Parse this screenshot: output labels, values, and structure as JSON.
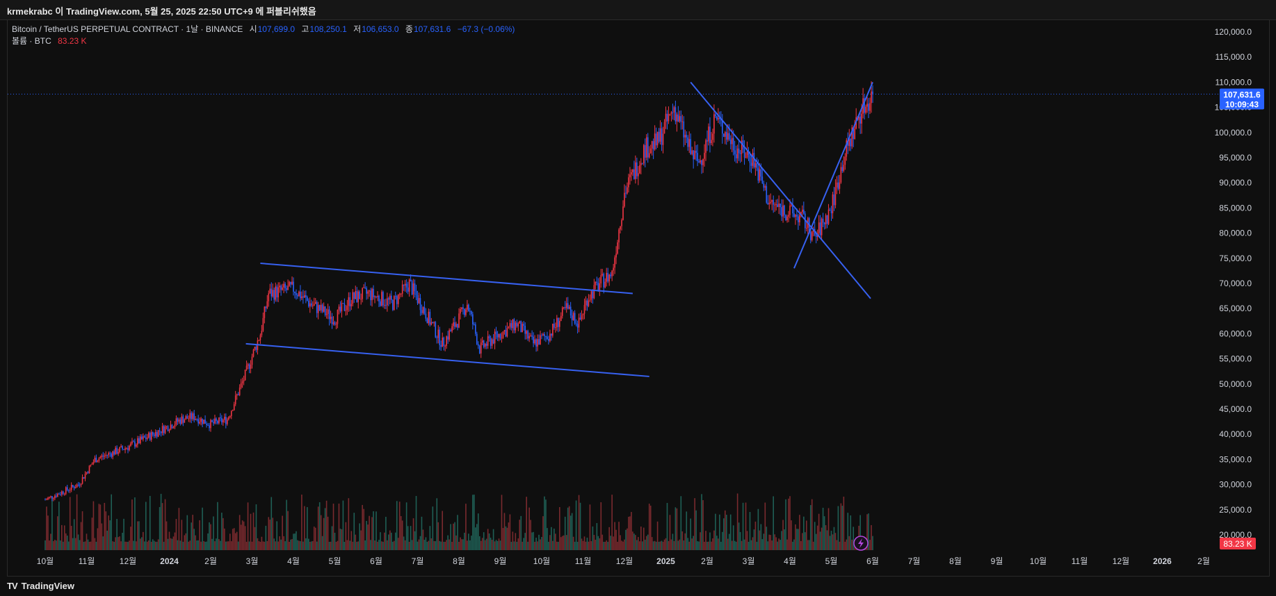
{
  "header": {
    "publish_text": "krmekrabc 이 TradingView.com, 5월 25, 2025 22:50 UTC+9 에 퍼블리쉬했음"
  },
  "legend": {
    "symbol": "Bitcoin / TetherUS PERPETUAL CONTRACT · 1날 · BINANCE",
    "open_label": "시",
    "open_value": "107,699.0",
    "high_label": "고",
    "high_value": "108,250.1",
    "low_label": "저",
    "low_value": "106,653.0",
    "close_label": "종",
    "close_value": "107,631.6",
    "change": "−67.3 (−0.06%)",
    "volume_label": "볼륨 · BTC",
    "volume_value": "83.23 K"
  },
  "footer": {
    "brand": "TradingView",
    "brand_logo": "TV"
  },
  "price_label": {
    "price": "107,631.6",
    "countdown": "10:09:43"
  },
  "volume_label": "83.23 K",
  "colors": {
    "up": "#f23645",
    "down": "#2962ff",
    "vol_up": "#7a2a2e",
    "vol_down": "#1f5f55",
    "trendline": "#3761f1",
    "price_tag": "#2962ff",
    "vol_tag": "#f23645"
  },
  "chart_data": {
    "type": "candlestick",
    "symbol": "BTCUSDT.P",
    "exchange": "BINANCE",
    "interval": "1D",
    "y_axis": {
      "ticks": [
        "120,000.0",
        "115,000.0",
        "110,000.0",
        "105,000.0",
        "100,000.0",
        "95,000.0",
        "90,000.0",
        "85,000.0",
        "80,000.0",
        "75,000.0",
        "70,000.0",
        "65,000.0",
        "60,000.0",
        "55,000.0",
        "50,000.0",
        "45,000.0",
        "40,000.0",
        "35,000.0",
        "30,000.0",
        "25,000.0",
        "20,000.0"
      ],
      "values": [
        120000,
        115000,
        110000,
        105000,
        100000,
        95000,
        90000,
        85000,
        80000,
        75000,
        70000,
        65000,
        60000,
        55000,
        50000,
        45000,
        40000,
        35000,
        30000,
        25000,
        20000
      ]
    },
    "x_axis": {
      "ticks": [
        "10월",
        "11월",
        "12월",
        "2024",
        "2월",
        "3월",
        "4월",
        "5월",
        "6월",
        "7월",
        "8월",
        "9월",
        "10월",
        "11월",
        "12월",
        "2025",
        "2월",
        "3월",
        "4월",
        "5월",
        "6월",
        "7월",
        "8월",
        "9월",
        "10월",
        "11월",
        "12월",
        "2026",
        "2월"
      ],
      "month_index": [
        0,
        1,
        2,
        3,
        4,
        5,
        6,
        7,
        8,
        9,
        10,
        11,
        12,
        13,
        14,
        15,
        16,
        17,
        18,
        19,
        20,
        21,
        22,
        23,
        24,
        25,
        26,
        27,
        28
      ]
    },
    "price_path": {
      "month_index": [
        0,
        0.8,
        1.2,
        2,
        2.6,
        3.3,
        3.6,
        4,
        4.4,
        4.8,
        5.2,
        5.4,
        6,
        6.4,
        7,
        7.4,
        7.8,
        8.4,
        8.8,
        9.2,
        9.6,
        10,
        10.2,
        10.5,
        11,
        11.4,
        11.8,
        12.2,
        12.6,
        12.9,
        13.1,
        13.4,
        13.7,
        14,
        14.5,
        14.8,
        15.2,
        15.6,
        15.8,
        16.2,
        16.7,
        17.1,
        17.5,
        18.0,
        18.3,
        18.6,
        19.0,
        19.3,
        19.7,
        20.0
      ],
      "close": [
        27000,
        30000,
        35000,
        37500,
        40000,
        43000,
        43500,
        42000,
        43000,
        51000,
        60000,
        68000,
        69000,
        66000,
        63000,
        67000,
        68000,
        66000,
        70000,
        64000,
        58000,
        63000,
        66000,
        57000,
        60000,
        62000,
        58000,
        60000,
        65000,
        62000,
        67000,
        70000,
        72000,
        88000,
        97000,
        98000,
        105000,
        96000,
        94000,
        103000,
        97000,
        95000,
        86000,
        84000,
        83000,
        79000,
        85000,
        95000,
        104000,
        107631.6
      ]
    },
    "trendlines": [
      {
        "name": "channel-top",
        "x": [
          5.2,
          14.2
        ],
        "y": [
          74000,
          68000
        ]
      },
      {
        "name": "channel-bottom",
        "x": [
          4.85,
          14.6
        ],
        "y": [
          58000,
          51500
        ]
      },
      {
        "name": "downtrend",
        "x": [
          15.6,
          19.95
        ],
        "y": [
          110000,
          67000
        ]
      },
      {
        "name": "uptrend",
        "x": [
          18.1,
          20.0
        ],
        "y": [
          73000,
          110000
        ]
      }
    ],
    "last_price": 107631.6,
    "volume_last": "83.23 K",
    "grid": false
  }
}
